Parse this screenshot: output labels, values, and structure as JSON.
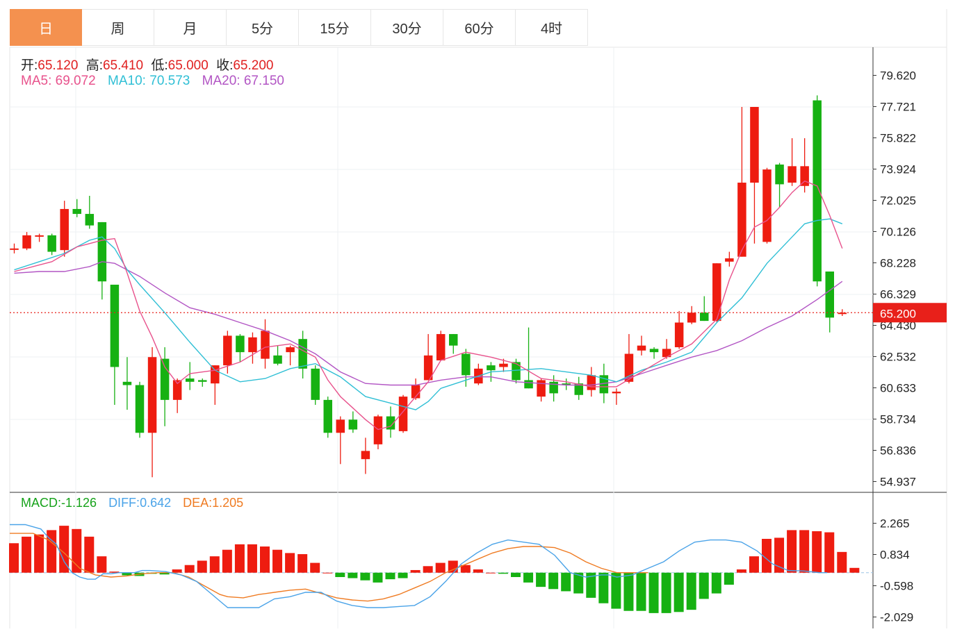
{
  "tabs": [
    "日",
    "周",
    "月",
    "5分",
    "15分",
    "30分",
    "60分",
    "4时"
  ],
  "active_tab": 0,
  "ohlc_info": {
    "open_label": "开:",
    "open": "65.120",
    "high_label": "高:",
    "high": "65.410",
    "low_label": "低:",
    "low": "65.000",
    "close_label": "收:",
    "close": "65.200"
  },
  "ma_info": {
    "ma5_label": "MA5:",
    "ma5": "69.072",
    "ma10_label": "MA10:",
    "ma10": "70.573",
    "ma20_label": "MA20:",
    "ma20": "67.150"
  },
  "macd_info": {
    "macd_label": "MACD:",
    "macd": "-1.126",
    "diff_label": "DIFF:",
    "diff": "0.642",
    "dea_label": "DEA:",
    "dea": "1.205"
  },
  "current_price": "65.200",
  "colors": {
    "up": "#ee1c10",
    "down": "#16b112",
    "ma5": "#e8528c",
    "ma10": "#2fbfd5",
    "ma20": "#b255c4",
    "diff": "#4aa3e8",
    "dea": "#ef7b22",
    "active_tab": "#f4914f"
  },
  "chart_data": [
    {
      "type": "candlestick",
      "y_ticks": [
        "79.620",
        "77.721",
        "75.822",
        "73.924",
        "72.025",
        "70.126",
        "68.228",
        "66.329",
        "64.430",
        "62.532",
        "60.633",
        "58.734",
        "56.836",
        "54.937"
      ],
      "ylim": [
        54.937,
        79.62
      ],
      "candles": [
        [
          69.1,
          69.1,
          69.4,
          68.8
        ],
        [
          69.1,
          69.9,
          70.1,
          69.0
        ],
        [
          69.9,
          69.9,
          70.0,
          69.5
        ],
        [
          69.9,
          68.9,
          70.0,
          68.7
        ],
        [
          69.0,
          71.5,
          72.0,
          68.6
        ],
        [
          71.5,
          71.2,
          72.1,
          71.0
        ],
        [
          71.2,
          70.5,
          72.3,
          70.3
        ],
        [
          70.7,
          67.1,
          70.7,
          66.0
        ],
        [
          66.9,
          61.9,
          66.9,
          59.6
        ],
        [
          61.0,
          60.8,
          62.5,
          59.3
        ],
        [
          60.8,
          57.9,
          61.0,
          57.6
        ],
        [
          57.9,
          62.5,
          63.1,
          55.2
        ],
        [
          62.4,
          59.9,
          63.1,
          58.3
        ],
        [
          59.9,
          61.1,
          61.2,
          59.1
        ],
        [
          61.2,
          61.0,
          62.2,
          60.5
        ],
        [
          61.1,
          61.0,
          61.2,
          60.7
        ],
        [
          60.9,
          62.0,
          62.0,
          59.6
        ],
        [
          62.0,
          63.8,
          64.1,
          61.5
        ],
        [
          63.8,
          62.8,
          63.9,
          62.2
        ],
        [
          62.8,
          63.7,
          64.0,
          62.1
        ],
        [
          62.4,
          64.1,
          64.8,
          61.8
        ],
        [
          62.6,
          62.1,
          63.2,
          62.0
        ],
        [
          62.8,
          63.1,
          63.2,
          62.0
        ],
        [
          63.6,
          61.8,
          64.1,
          61.2
        ],
        [
          61.8,
          59.9,
          62.0,
          59.6
        ],
        [
          59.9,
          57.9,
          60.1,
          57.6
        ],
        [
          57.9,
          58.7,
          58.9,
          56.0
        ],
        [
          58.7,
          58.1,
          59.2,
          57.9
        ],
        [
          56.3,
          56.8,
          57.6,
          55.4
        ],
        [
          57.2,
          58.9,
          59.0,
          56.9
        ],
        [
          58.9,
          58.1,
          59.5,
          57.6
        ],
        [
          58.0,
          60.1,
          60.2,
          57.9
        ],
        [
          60.0,
          60.8,
          61.2,
          59.9
        ],
        [
          61.1,
          62.6,
          63.9,
          61.1
        ],
        [
          62.3,
          63.9,
          64.1,
          62.3
        ],
        [
          63.9,
          63.2,
          63.9,
          62.7
        ],
        [
          62.7,
          61.4,
          63.0,
          60.7
        ],
        [
          60.9,
          61.8,
          62.1,
          60.8
        ],
        [
          62.0,
          61.7,
          62.2,
          61.0
        ],
        [
          61.9,
          62.1,
          62.4,
          61.6
        ],
        [
          62.2,
          61.1,
          62.4,
          60.9
        ],
        [
          61.1,
          60.6,
          64.3,
          60.6
        ],
        [
          60.1,
          61.1,
          61.2,
          59.8
        ],
        [
          61.0,
          60.3,
          61.4,
          59.8
        ],
        [
          60.9,
          60.8,
          61.2,
          60.5
        ],
        [
          60.9,
          60.2,
          61.3,
          59.9
        ],
        [
          60.5,
          61.4,
          61.9,
          60.1
        ],
        [
          61.4,
          60.3,
          62.1,
          59.7
        ],
        [
          60.3,
          60.4,
          60.6,
          59.6
        ],
        [
          61.0,
          62.7,
          63.9,
          60.9
        ],
        [
          62.9,
          63.2,
          63.8,
          62.6
        ],
        [
          63.0,
          62.8,
          63.1,
          62.4
        ],
        [
          62.5,
          63.0,
          63.6,
          62.4
        ],
        [
          63.1,
          64.6,
          65.3,
          63.0
        ],
        [
          64.6,
          65.2,
          65.6,
          64.5
        ],
        [
          65.2,
          64.7,
          66.2,
          64.7
        ],
        [
          64.7,
          68.2,
          68.2,
          64.6
        ],
        [
          68.3,
          68.5,
          68.9,
          68.0
        ],
        [
          68.6,
          73.1,
          77.7,
          68.6
        ],
        [
          73.1,
          77.7,
          77.4,
          69.4
        ],
        [
          69.5,
          73.9,
          74.0,
          69.4
        ],
        [
          74.2,
          73.0,
          74.3,
          71.6
        ],
        [
          73.1,
          74.1,
          75.8,
          72.9
        ],
        [
          72.9,
          74.1,
          75.8,
          72.5
        ],
        [
          78.1,
          67.1,
          78.4,
          66.8
        ],
        [
          67.7,
          64.9,
          67.7,
          64.0
        ],
        [
          65.12,
          65.2,
          65.41,
          65.0
        ]
      ],
      "ma5": [
        [
          0,
          67.7
        ],
        [
          3,
          68.3
        ],
        [
          5,
          69.2
        ],
        [
          7,
          69.6
        ],
        [
          8,
          69.7
        ],
        [
          9,
          67.6
        ],
        [
          10,
          65.3
        ],
        [
          11,
          63.7
        ],
        [
          12,
          61.9
        ],
        [
          13,
          60.9
        ],
        [
          14,
          61.5
        ],
        [
          16,
          61.7
        ],
        [
          18,
          62.2
        ],
        [
          20,
          63.1
        ],
        [
          22,
          63.3
        ],
        [
          24,
          62.5
        ],
        [
          25,
          61.1
        ],
        [
          26,
          60.1
        ],
        [
          28,
          58.7
        ],
        [
          29,
          58.1
        ],
        [
          30,
          58.3
        ],
        [
          31,
          59.2
        ],
        [
          33,
          61.0
        ],
        [
          34,
          62.3
        ],
        [
          36,
          62.8
        ],
        [
          38,
          62.5
        ],
        [
          40,
          62.1
        ],
        [
          42,
          61.2
        ],
        [
          44,
          61.0
        ],
        [
          46,
          60.7
        ],
        [
          48,
          60.7
        ],
        [
          50,
          61.6
        ],
        [
          52,
          62.5
        ],
        [
          54,
          63.3
        ],
        [
          56,
          64.8
        ],
        [
          57,
          67.2
        ],
        [
          58,
          69.0
        ],
        [
          59,
          70.4
        ],
        [
          60,
          70.8
        ],
        [
          61,
          71.6
        ],
        [
          62,
          72.5
        ],
        [
          63,
          73.2
        ],
        [
          64,
          72.9
        ],
        [
          65,
          71.1
        ],
        [
          66,
          69.1
        ]
      ],
      "ma10": [
        [
          0,
          67.8
        ],
        [
          2,
          68.3
        ],
        [
          4,
          68.8
        ],
        [
          6,
          69.6
        ],
        [
          7,
          69.8
        ],
        [
          8,
          69.1
        ],
        [
          9,
          67.8
        ],
        [
          10,
          66.9
        ],
        [
          12,
          65.2
        ],
        [
          14,
          63.4
        ],
        [
          16,
          61.7
        ],
        [
          18,
          61.0
        ],
        [
          20,
          61.2
        ],
        [
          22,
          61.8
        ],
        [
          24,
          62.1
        ],
        [
          26,
          61.3
        ],
        [
          28,
          60.1
        ],
        [
          30,
          59.7
        ],
        [
          32,
          59.3
        ],
        [
          33,
          59.8
        ],
        [
          34,
          60.6
        ],
        [
          36,
          61.1
        ],
        [
          38,
          61.6
        ],
        [
          40,
          61.7
        ],
        [
          42,
          61.8
        ],
        [
          44,
          61.6
        ],
        [
          46,
          61.4
        ],
        [
          48,
          61.0
        ],
        [
          50,
          61.7
        ],
        [
          52,
          62.2
        ],
        [
          54,
          62.8
        ],
        [
          56,
          64.6
        ],
        [
          58,
          66.1
        ],
        [
          60,
          68.2
        ],
        [
          62,
          69.8
        ],
        [
          63,
          70.6
        ],
        [
          64,
          70.8
        ],
        [
          65,
          70.9
        ],
        [
          66,
          70.6
        ]
      ],
      "ma20": [
        [
          0,
          67.6
        ],
        [
          2,
          67.7
        ],
        [
          4,
          67.7
        ],
        [
          6,
          68.0
        ],
        [
          7,
          68.3
        ],
        [
          8,
          68.2
        ],
        [
          10,
          67.4
        ],
        [
          12,
          66.4
        ],
        [
          14,
          65.5
        ],
        [
          16,
          65.1
        ],
        [
          18,
          64.6
        ],
        [
          20,
          64.1
        ],
        [
          22,
          63.5
        ],
        [
          24,
          62.7
        ],
        [
          26,
          61.6
        ],
        [
          28,
          60.9
        ],
        [
          30,
          60.8
        ],
        [
          32,
          60.8
        ],
        [
          34,
          61.1
        ],
        [
          36,
          61.3
        ],
        [
          38,
          61.3
        ],
        [
          40,
          61.0
        ],
        [
          42,
          60.9
        ],
        [
          44,
          60.8
        ],
        [
          46,
          60.8
        ],
        [
          48,
          61.0
        ],
        [
          50,
          61.5
        ],
        [
          52,
          62.0
        ],
        [
          54,
          62.5
        ],
        [
          56,
          62.9
        ],
        [
          58,
          63.5
        ],
        [
          60,
          64.3
        ],
        [
          62,
          65.0
        ],
        [
          64,
          66.0
        ],
        [
          66,
          67.1
        ]
      ]
    },
    {
      "type": "bar",
      "y_ticks": [
        "2.265",
        "0.834",
        "-0.598",
        "-2.029"
      ],
      "ylim": [
        -2.029,
        2.265
      ],
      "macd_bars": [
        1.35,
        1.65,
        1.75,
        1.95,
        2.15,
        2.0,
        1.65,
        0.75,
        0.05,
        -0.12,
        -0.15,
        -0.05,
        -0.08,
        0.15,
        0.35,
        0.55,
        0.75,
        1.05,
        1.3,
        1.3,
        1.2,
        1.05,
        0.9,
        0.85,
        0.45,
        0.0,
        -0.2,
        -0.25,
        -0.35,
        -0.45,
        -0.3,
        -0.25,
        0.12,
        0.3,
        0.45,
        0.55,
        0.35,
        0.15,
        0.0,
        -0.05,
        -0.2,
        -0.45,
        -0.65,
        -0.75,
        -0.85,
        -0.95,
        -1.15,
        -1.4,
        -1.65,
        -1.75,
        -1.75,
        -1.85,
        -1.85,
        -1.8,
        -1.7,
        -1.2,
        -0.95,
        -0.55,
        0.15,
        0.75,
        1.55,
        1.6,
        1.95,
        1.95,
        1.9,
        1.85,
        0.95,
        0.22
      ],
      "diff": [
        [
          0,
          2.2
        ],
        [
          2,
          2.2
        ],
        [
          4,
          2.0
        ],
        [
          5,
          1.6
        ],
        [
          6,
          1.3
        ],
        [
          7,
          0.5
        ],
        [
          8,
          0.0
        ],
        [
          9,
          -0.2
        ],
        [
          10,
          -0.3
        ],
        [
          11,
          -0.3
        ],
        [
          12,
          -0.05
        ],
        [
          13,
          -0.05
        ],
        [
          14,
          0.0
        ],
        [
          16,
          0.0
        ],
        [
          17,
          0.1
        ],
        [
          18,
          0.1
        ],
        [
          20,
          0.05
        ],
        [
          22,
          -0.1
        ],
        [
          24,
          -0.4
        ],
        [
          26,
          -1.0
        ],
        [
          27,
          -1.3
        ],
        [
          28,
          -1.6
        ],
        [
          30,
          -1.6
        ],
        [
          32,
          -1.6
        ],
        [
          34,
          -1.2
        ],
        [
          36,
          -1.1
        ],
        [
          38,
          -0.9
        ],
        [
          40,
          -0.9
        ],
        [
          42,
          -1.3
        ],
        [
          44,
          -1.5
        ],
        [
          46,
          -1.6
        ],
        [
          48,
          -1.6
        ],
        [
          50,
          -1.55
        ],
        [
          52,
          -1.5
        ],
        [
          54,
          -1.1
        ],
        [
          56,
          -0.4
        ],
        [
          58,
          0.4
        ],
        [
          60,
          0.9
        ],
        [
          62,
          1.3
        ],
        [
          64,
          1.5
        ],
        [
          66,
          1.4
        ],
        [
          68,
          1.3
        ],
        [
          70,
          0.8
        ],
        [
          72,
          0.0
        ],
        [
          74,
          -0.2
        ],
        [
          76,
          -0.1
        ],
        [
          77,
          -0.1
        ],
        [
          78,
          -0.2
        ],
        [
          80,
          -0.1
        ],
        [
          82,
          0.2
        ],
        [
          84,
          0.5
        ],
        [
          86,
          1.0
        ],
        [
          88,
          1.4
        ],
        [
          90,
          1.5
        ],
        [
          92,
          1.5
        ],
        [
          94,
          1.4
        ],
        [
          96,
          1.0
        ],
        [
          98,
          0.4
        ],
        [
          100,
          0.1
        ],
        [
          102,
          0.08
        ],
        [
          104,
          0.0
        ],
        [
          105,
          0.0
        ]
      ],
      "dea": [
        [
          0,
          1.8
        ],
        [
          3,
          1.8
        ],
        [
          5,
          1.5
        ],
        [
          7,
          0.9
        ],
        [
          9,
          0.2
        ],
        [
          11,
          -0.1
        ],
        [
          13,
          -0.2
        ],
        [
          15,
          -0.15
        ],
        [
          17,
          -0.05
        ],
        [
          19,
          0.0
        ],
        [
          21,
          0.0
        ],
        [
          23,
          -0.2
        ],
        [
          25,
          -0.6
        ],
        [
          27,
          -1.0
        ],
        [
          28,
          -1.1
        ],
        [
          30,
          -1.15
        ],
        [
          32,
          -1.0
        ],
        [
          34,
          -0.9
        ],
        [
          36,
          -0.8
        ],
        [
          38,
          -0.75
        ],
        [
          40,
          -0.95
        ],
        [
          42,
          -1.15
        ],
        [
          44,
          -1.25
        ],
        [
          46,
          -1.3
        ],
        [
          48,
          -1.2
        ],
        [
          50,
          -1.0
        ],
        [
          52,
          -0.7
        ],
        [
          54,
          -0.4
        ],
        [
          56,
          0.0
        ],
        [
          58,
          0.3
        ],
        [
          60,
          0.6
        ],
        [
          62,
          0.9
        ],
        [
          64,
          1.1
        ],
        [
          66,
          1.2
        ],
        [
          68,
          1.2
        ],
        [
          70,
          1.15
        ],
        [
          72,
          0.9
        ],
        [
          74,
          0.5
        ],
        [
          76,
          0.2
        ],
        [
          78,
          0.0
        ],
        [
          80,
          0.0
        ],
        [
          82,
          0.0
        ]
      ]
    }
  ]
}
